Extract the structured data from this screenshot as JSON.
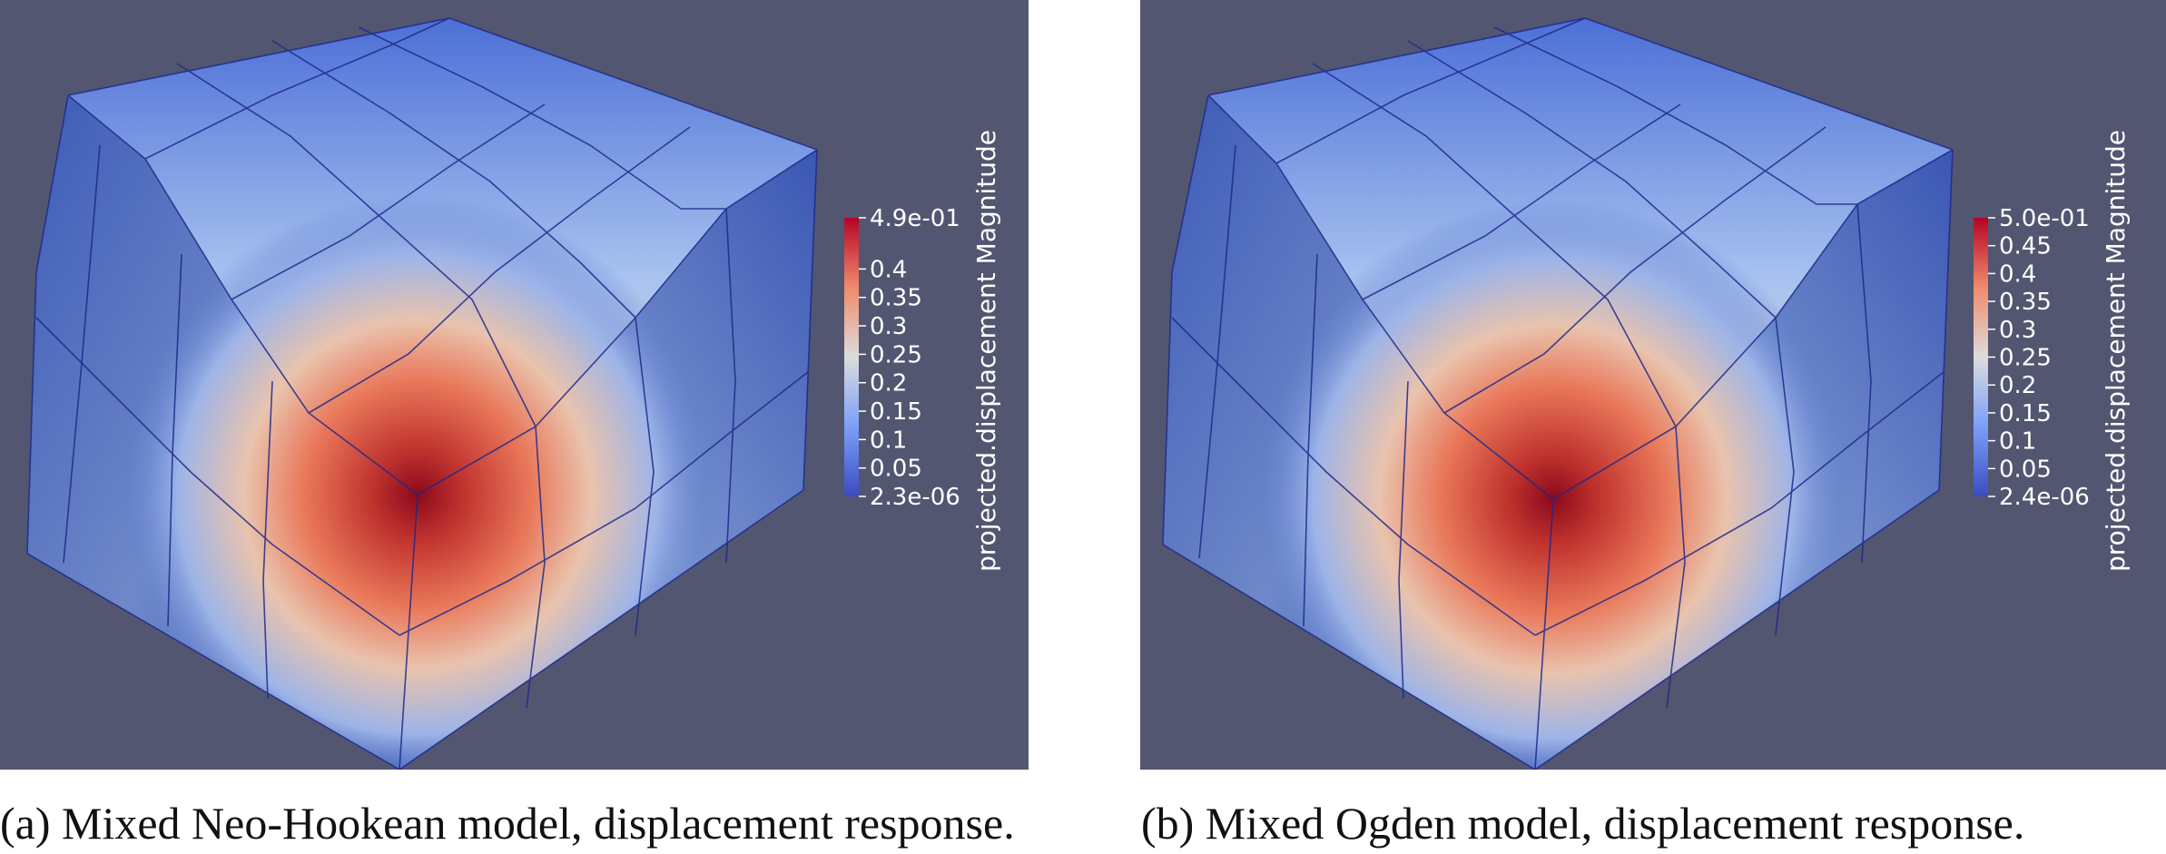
{
  "panels": [
    {
      "caption": "(a) Mixed Neo-Hookean model, displacement response.",
      "colorbar": {
        "title": "projected.displacement Magnitude",
        "max_label": "4.9e-01",
        "min_label": "2.3e-06",
        "tick_labels": [
          "0.4",
          "0.35",
          "0.3",
          "0.25",
          "0.2",
          "0.15",
          "0.1",
          "0.05"
        ],
        "range": [
          2.3e-06,
          0.49
        ]
      }
    },
    {
      "caption": "(b) Mixed Ogden model, displacement response.",
      "colorbar": {
        "title": "projected.displacement Magnitude",
        "max_label": "5.0e-01",
        "min_label": "2.4e-06",
        "tick_labels": [
          "0.45",
          "0.4",
          "0.35",
          "0.3",
          "0.25",
          "0.2",
          "0.15",
          "0.1",
          "0.05"
        ],
        "range": [
          2.4e-06,
          0.5
        ]
      }
    }
  ],
  "colors": {
    "background": "#535670",
    "low": "#3b4cc0",
    "mid": "#dcdcdc",
    "high": "#b40426",
    "grid": "#1e2a8a"
  }
}
